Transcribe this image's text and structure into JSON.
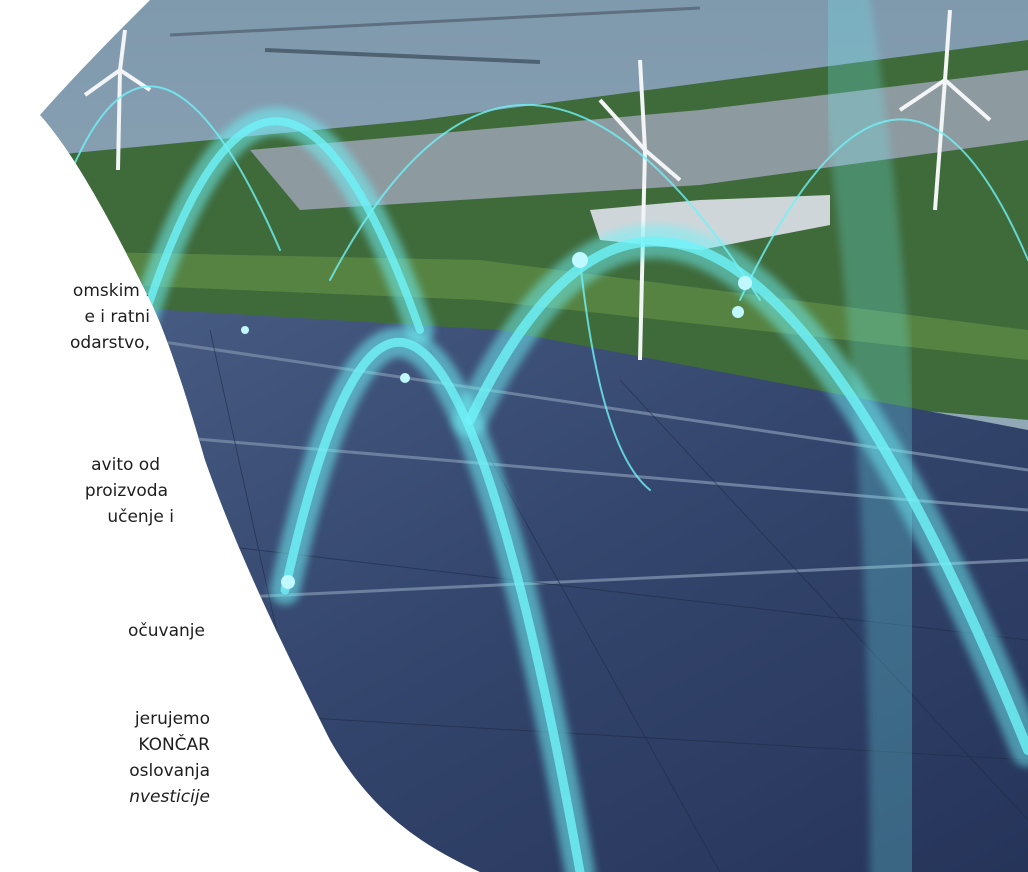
{
  "paragraphs": [
    {
      "lines": [
        "omskim i",
        "e i ratni",
        "odarstvo,"
      ]
    },
    {
      "lines": [
        "avito od",
        "proizvoda",
        "učenje i"
      ]
    },
    {
      "lines": [
        "očuvanje"
      ]
    },
    {
      "lines": [
        "jerujemo",
        "KONČAR",
        "oslovanja",
        "nvesticije"
      ]
    }
  ]
}
